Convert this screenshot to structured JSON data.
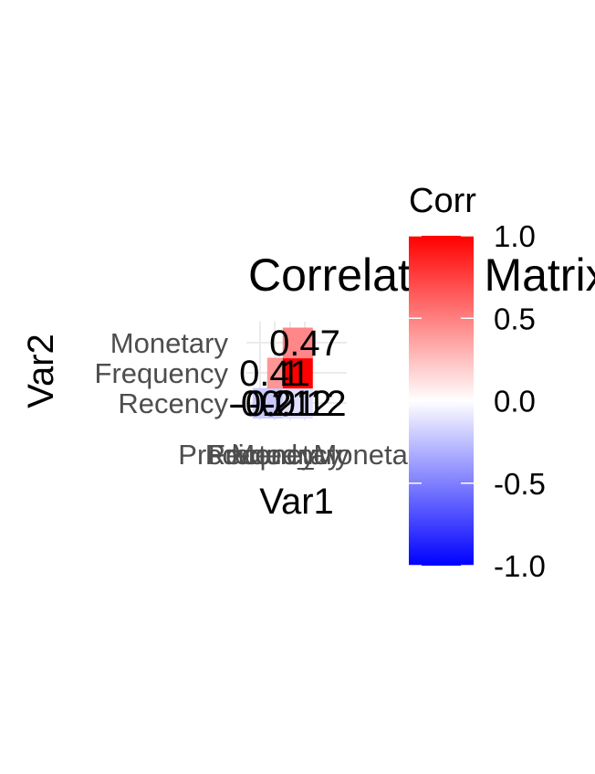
{
  "chart_data": {
    "type": "heatmap",
    "title": "Correlation Matrix",
    "xlabel": "Var1",
    "ylabel": "Var2",
    "x_categories": [
      "Recency",
      "Frequency",
      "Monetary",
      "Predicted_Monetary"
    ],
    "y_categories": [
      "Recency",
      "Frequency",
      "Monetary"
    ],
    "cells": [
      {
        "x": "Recency",
        "y": "Recency",
        "value": -0.2
      },
      {
        "x": "Frequency",
        "y": "Recency",
        "value": -0.21
      },
      {
        "x": "Monetary",
        "y": "Recency",
        "value": -0.12
      },
      {
        "x": "Predicted_Monetary",
        "y": "Recency",
        "value": -0.12
      },
      {
        "x": "Frequency",
        "y": "Frequency",
        "value": 0.41
      },
      {
        "x": "Monetary",
        "y": "Frequency",
        "value": 1.0
      },
      {
        "x": "Predicted_Monetary",
        "y": "Frequency",
        "value": 1.0
      },
      {
        "x": "Monetary",
        "y": "Monetary",
        "value": 0.47
      },
      {
        "x": "Predicted_Monetary",
        "y": "Monetary",
        "value": 0.47
      }
    ],
    "cell_labels": [
      {
        "text": "0.47",
        "x": "Predicted_Monetary",
        "y": "Monetary"
      },
      {
        "text": "0.41",
        "x": "Frequency",
        "y": "Frequency"
      },
      {
        "text": "1",
        "x": "Monetary",
        "y": "Frequency"
      },
      {
        "text": "-0.2",
        "x": "Recency",
        "y": "Recency"
      },
      {
        "text": "-0.21",
        "x": "Frequency",
        "y": "Recency"
      },
      {
        "text": "-0.12",
        "x": "Monetary",
        "y": "Recency"
      },
      {
        "text": "-0.12",
        "x": "Predicted_Monetary",
        "y": "Recency"
      }
    ],
    "legend": {
      "title": "Corr",
      "limits": [
        -1.0,
        1.0
      ],
      "breaks": [
        1.0,
        0.5,
        0.0,
        -0.5,
        -1.0
      ],
      "break_labels": [
        "1.0",
        "0.5",
        "0.0",
        "-0.5",
        "-1.0"
      ],
      "colors": {
        "low": "#0000ff",
        "mid": "#ffffff",
        "high": "#ff0000"
      },
      "placement": "right"
    }
  }
}
